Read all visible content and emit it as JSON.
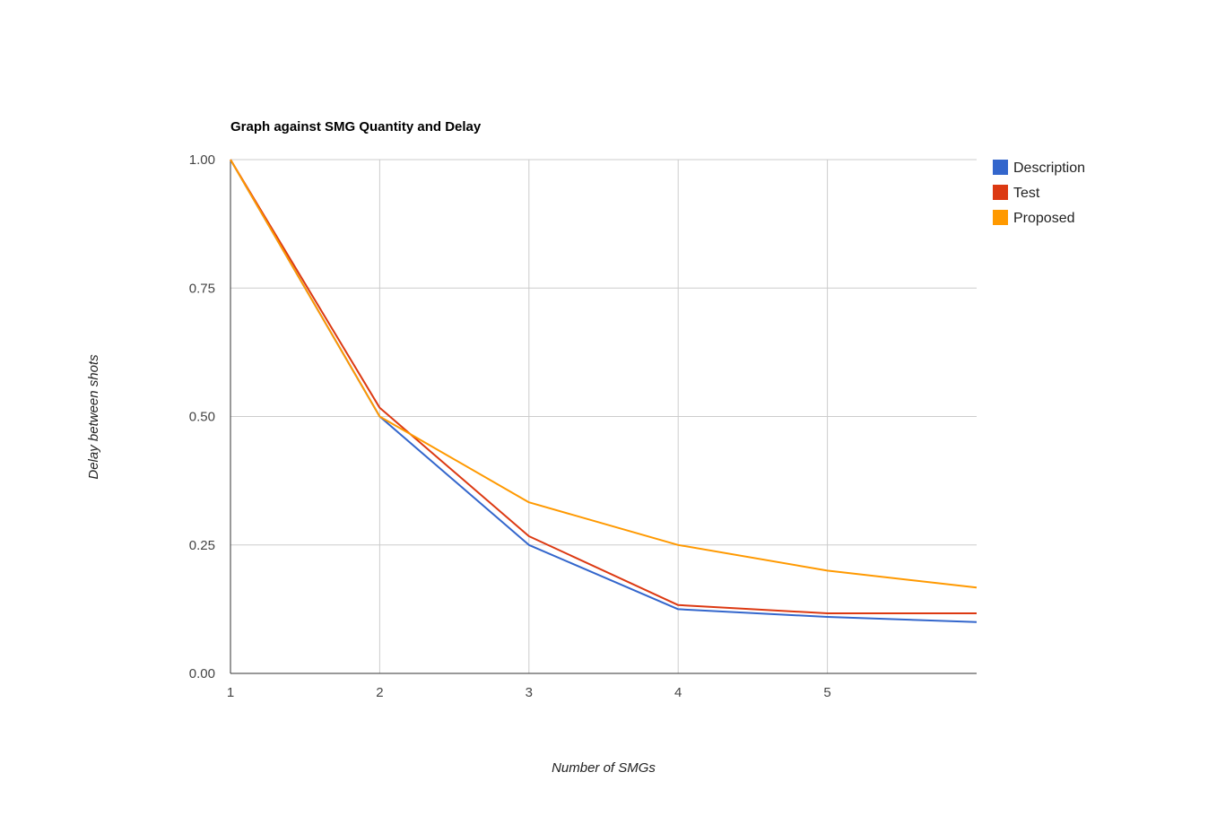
{
  "chart_data": {
    "type": "line",
    "title": "Graph against SMG Quantity and Delay",
    "xlabel": "Number of SMGs",
    "ylabel": "Delay between shots",
    "x": [
      1,
      2,
      3,
      4,
      5,
      6
    ],
    "xlim": [
      1,
      6
    ],
    "ylim": [
      0,
      1
    ],
    "x_ticks": [
      1,
      2,
      3,
      4,
      5
    ],
    "x_tick_labels": [
      "1",
      "2",
      "3",
      "4",
      "5"
    ],
    "y_ticks": [
      0,
      0.25,
      0.5,
      0.75,
      1
    ],
    "y_tick_labels": [
      "0.00",
      "0.25",
      "0.50",
      "0.75",
      "1.00"
    ],
    "grid": true,
    "legend_position": "right",
    "series": [
      {
        "name": "Description",
        "color": "#3366cc",
        "values": [
          1.0,
          0.5,
          0.25,
          0.125,
          0.11,
          0.1
        ]
      },
      {
        "name": "Test",
        "color": "#dc3912",
        "values": [
          1.0,
          0.517,
          0.267,
          0.133,
          0.117,
          0.117
        ]
      },
      {
        "name": "Proposed",
        "color": "#ff9900",
        "values": [
          1.0,
          0.5,
          0.333,
          0.25,
          0.2,
          0.167
        ]
      }
    ]
  }
}
